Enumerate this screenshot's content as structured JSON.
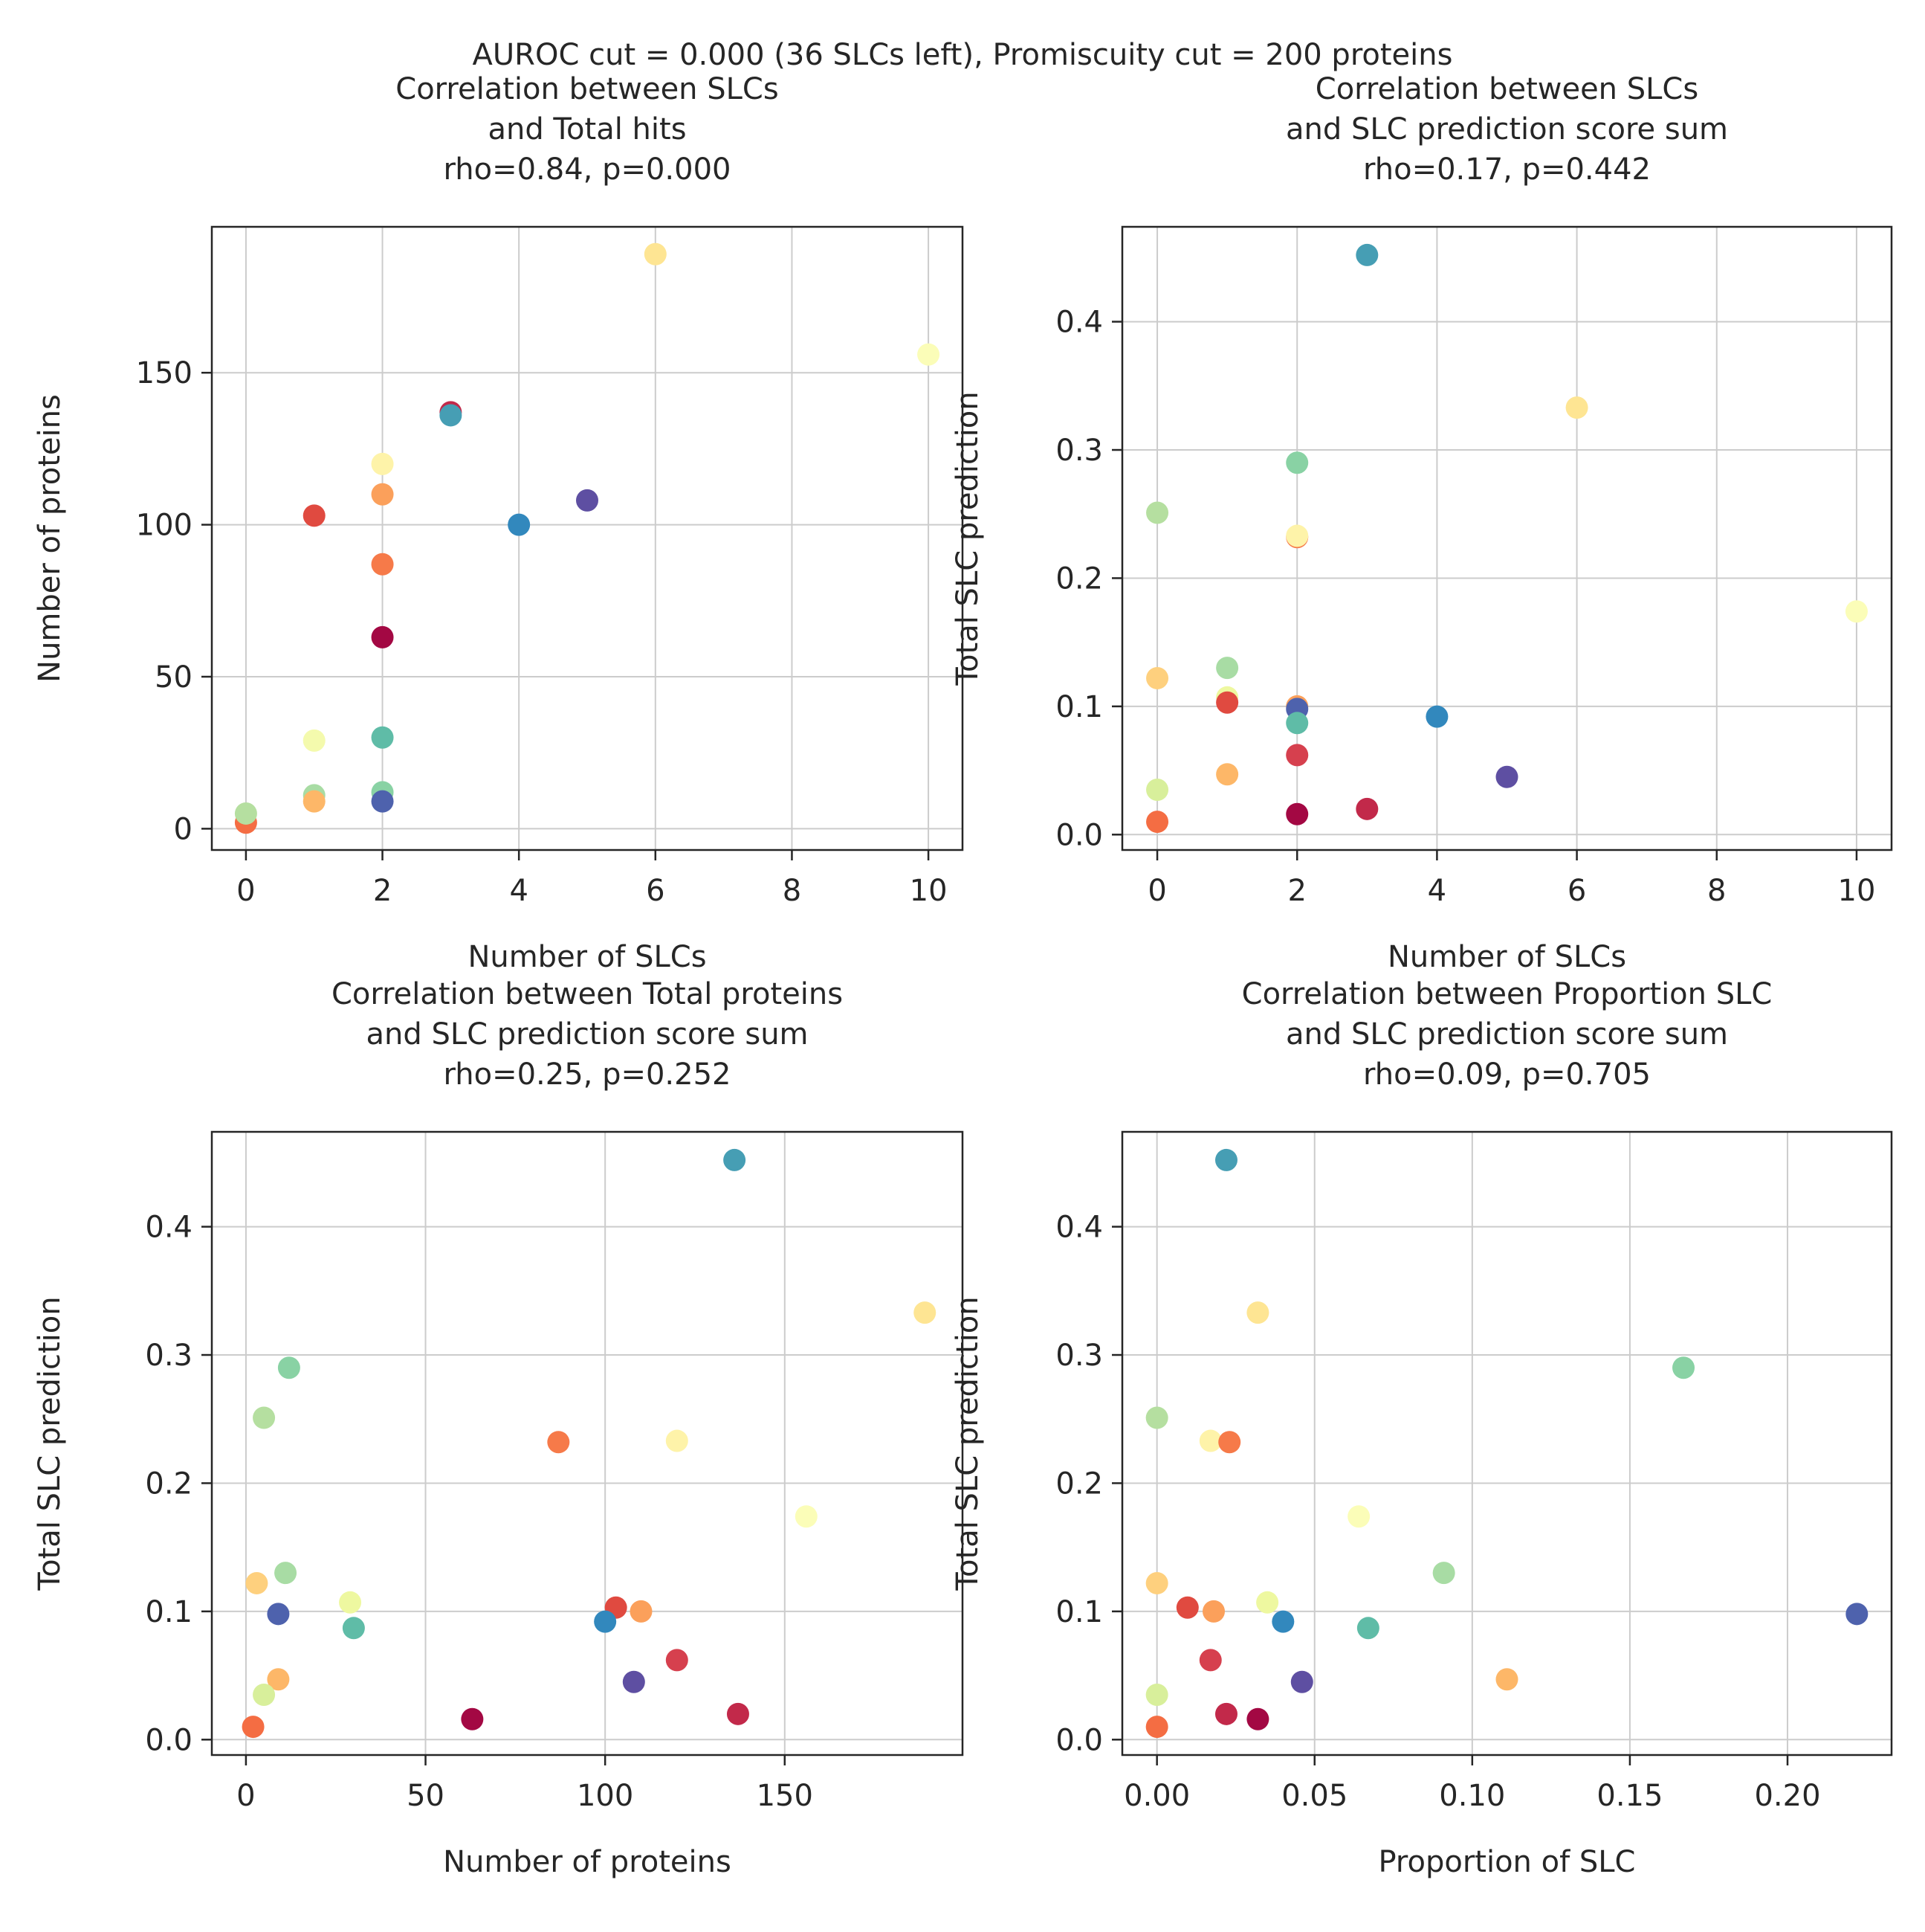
{
  "figure": {
    "suptitle": "AUROC cut = 0.000 (36 SLCs left), Promiscuity cut = 200 proteins"
  },
  "chart_data": [
    {
      "type": "scatter",
      "title_lines": [
        "Correlation between SLCs",
        "and Total hits",
        "rho=0.84, p=0.000"
      ],
      "xlabel": "Number of SLCs",
      "ylabel": "Number of proteins",
      "xlim": [
        -0.5,
        10.5
      ],
      "ylim": [
        -7,
        198
      ],
      "xticks": [
        0,
        2,
        4,
        6,
        8,
        10
      ],
      "xticklabels": [
        "0",
        "2",
        "4",
        "6",
        "8",
        "10"
      ],
      "yticks": [
        0,
        50,
        100,
        150
      ],
      "yticklabels": [
        "0",
        "50",
        "100",
        "150"
      ],
      "grid": true,
      "points": [
        {
          "x": 0,
          "y": 2,
          "color": "#f46d43"
        },
        {
          "x": 0,
          "y": 5,
          "color": "#b5dfa0"
        },
        {
          "x": 1,
          "y": 103,
          "color": "#e04a40"
        },
        {
          "x": 1,
          "y": 29,
          "color": "#f4faad"
        },
        {
          "x": 1,
          "y": 11,
          "color": "#a8dca4"
        },
        {
          "x": 1,
          "y": 9,
          "color": "#fdb768"
        },
        {
          "x": 2,
          "y": 120,
          "color": "#fef3a9"
        },
        {
          "x": 2,
          "y": 110,
          "color": "#fba05b"
        },
        {
          "x": 2,
          "y": 87,
          "color": "#f67a49"
        },
        {
          "x": 2,
          "y": 63,
          "color": "#a30843"
        },
        {
          "x": 2,
          "y": 30,
          "color": "#5fbca7"
        },
        {
          "x": 2,
          "y": 12,
          "color": "#89d2a4"
        },
        {
          "x": 2,
          "y": 9,
          "color": "#4e62ad"
        },
        {
          "x": 3,
          "y": 137,
          "color": "#c2294a"
        },
        {
          "x": 3,
          "y": 136,
          "color": "#469eb4"
        },
        {
          "x": 4,
          "y": 100,
          "color": "#3288bd"
        },
        {
          "x": 5,
          "y": 108,
          "color": "#5e4fa2"
        },
        {
          "x": 6,
          "y": 189,
          "color": "#fee593"
        },
        {
          "x": 10,
          "y": 156,
          "color": "#fbfdb8"
        }
      ]
    },
    {
      "type": "scatter",
      "title_lines": [
        "Correlation between SLCs",
        "and SLC prediction score sum",
        "rho=0.17, p=0.442"
      ],
      "xlabel": "Number of SLCs",
      "ylabel": "Total SLC prediction",
      "xlim": [
        -0.5,
        10.5
      ],
      "ylim": [
        -0.012,
        0.474
      ],
      "xticks": [
        0,
        2,
        4,
        6,
        8,
        10
      ],
      "xticklabels": [
        "0",
        "2",
        "4",
        "6",
        "8",
        "10"
      ],
      "yticks": [
        0.0,
        0.1,
        0.2,
        0.3,
        0.4
      ],
      "yticklabels": [
        "0.0",
        "0.1",
        "0.2",
        "0.3",
        "0.4"
      ],
      "grid": true,
      "points": [
        {
          "x": 0,
          "y": 0.251,
          "color": "#b5dfa0"
        },
        {
          "x": 0,
          "y": 0.122,
          "color": "#fed07e"
        },
        {
          "x": 0,
          "y": 0.035,
          "color": "#d8ef9b"
        },
        {
          "x": 0,
          "y": 0.01,
          "color": "#f46d43"
        },
        {
          "x": 1,
          "y": 0.13,
          "color": "#a8dca4"
        },
        {
          "x": 1,
          "y": 0.107,
          "color": "#eef8a0"
        },
        {
          "x": 1,
          "y": 0.103,
          "color": "#e04a40"
        },
        {
          "x": 1,
          "y": 0.047,
          "color": "#fdb768"
        },
        {
          "x": 2,
          "y": 0.29,
          "color": "#89d2a4"
        },
        {
          "x": 2,
          "y": 0.232,
          "color": "#f67a49"
        },
        {
          "x": 2,
          "y": 0.233,
          "color": "#fef3a9"
        },
        {
          "x": 2,
          "y": 0.1,
          "color": "#fba05b"
        },
        {
          "x": 2,
          "y": 0.098,
          "color": "#4e62ad"
        },
        {
          "x": 2,
          "y": 0.087,
          "color": "#5fbca7"
        },
        {
          "x": 2,
          "y": 0.062,
          "color": "#d6404e"
        },
        {
          "x": 2,
          "y": 0.016,
          "color": "#a30843"
        },
        {
          "x": 3,
          "y": 0.452,
          "color": "#469eb4"
        },
        {
          "x": 3,
          "y": 0.02,
          "color": "#c2294a"
        },
        {
          "x": 4,
          "y": 0.092,
          "color": "#3288bd"
        },
        {
          "x": 5,
          "y": 0.045,
          "color": "#5e4fa2"
        },
        {
          "x": 6,
          "y": 0.333,
          "color": "#fee593"
        },
        {
          "x": 10,
          "y": 0.174,
          "color": "#fbfdb8"
        }
      ]
    },
    {
      "type": "scatter",
      "title_lines": [
        "Correlation between Total proteins",
        "and SLC prediction score sum",
        "rho=0.25, p=0.252"
      ],
      "xlabel": "Number of proteins",
      "ylabel": "Total SLC prediction",
      "xlim": [
        -9.5,
        199.5
      ],
      "ylim": [
        -0.012,
        0.474
      ],
      "xticks": [
        0,
        50,
        100,
        150
      ],
      "xticklabels": [
        "0",
        "50",
        "100",
        "150"
      ],
      "yticks": [
        0.0,
        0.1,
        0.2,
        0.3,
        0.4
      ],
      "yticklabels": [
        "0.0",
        "0.1",
        "0.2",
        "0.3",
        "0.4"
      ],
      "grid": true,
      "points": [
        {
          "x": 136,
          "y": 0.452,
          "color": "#469eb4"
        },
        {
          "x": 189,
          "y": 0.333,
          "color": "#fee593"
        },
        {
          "x": 12,
          "y": 0.29,
          "color": "#89d2a4"
        },
        {
          "x": 5,
          "y": 0.251,
          "color": "#b5dfa0"
        },
        {
          "x": 87,
          "y": 0.232,
          "color": "#f67a49"
        },
        {
          "x": 120,
          "y": 0.233,
          "color": "#fef3a9"
        },
        {
          "x": 156,
          "y": 0.174,
          "color": "#fbfdb8"
        },
        {
          "x": 11,
          "y": 0.13,
          "color": "#a8dca4"
        },
        {
          "x": 3,
          "y": 0.122,
          "color": "#fed07e"
        },
        {
          "x": 29,
          "y": 0.107,
          "color": "#eef8a0"
        },
        {
          "x": 103,
          "y": 0.103,
          "color": "#e04a40"
        },
        {
          "x": 110,
          "y": 0.1,
          "color": "#fba05b"
        },
        {
          "x": 9,
          "y": 0.098,
          "color": "#4e62ad"
        },
        {
          "x": 100,
          "y": 0.092,
          "color": "#3288bd"
        },
        {
          "x": 30,
          "y": 0.087,
          "color": "#5fbca7"
        },
        {
          "x": 120,
          "y": 0.062,
          "color": "#d6404e"
        },
        {
          "x": 9,
          "y": 0.047,
          "color": "#fdb768"
        },
        {
          "x": 108,
          "y": 0.045,
          "color": "#5e4fa2"
        },
        {
          "x": 5,
          "y": 0.035,
          "color": "#d8ef9b"
        },
        {
          "x": 137,
          "y": 0.02,
          "color": "#c2294a"
        },
        {
          "x": 63,
          "y": 0.016,
          "color": "#a30843"
        },
        {
          "x": 2,
          "y": 0.01,
          "color": "#f46d43"
        }
      ]
    },
    {
      "type": "scatter",
      "title_lines": [
        "Correlation between Proportion SLC",
        "and SLC prediction score sum",
        "rho=0.09, p=0.705"
      ],
      "xlabel": "Proportion of SLC",
      "ylabel": "Total SLC prediction",
      "xlim": [
        -0.011,
        0.233
      ],
      "ylim": [
        -0.012,
        0.474
      ],
      "xticks": [
        0.0,
        0.05,
        0.1,
        0.15,
        0.2
      ],
      "xticklabels": [
        "0.00",
        "0.05",
        "0.10",
        "0.15",
        "0.20"
      ],
      "yticks": [
        0.0,
        0.1,
        0.2,
        0.3,
        0.4
      ],
      "yticklabels": [
        "0.0",
        "0.1",
        "0.2",
        "0.3",
        "0.4"
      ],
      "grid": true,
      "points": [
        {
          "x": 0.022,
          "y": 0.452,
          "color": "#469eb4"
        },
        {
          "x": 0.032,
          "y": 0.333,
          "color": "#fee593"
        },
        {
          "x": 0.167,
          "y": 0.29,
          "color": "#89d2a4"
        },
        {
          "x": 0.0,
          "y": 0.251,
          "color": "#b5dfa0"
        },
        {
          "x": 0.017,
          "y": 0.233,
          "color": "#fef3a9"
        },
        {
          "x": 0.023,
          "y": 0.232,
          "color": "#f67a49"
        },
        {
          "x": 0.064,
          "y": 0.174,
          "color": "#fbfdb8"
        },
        {
          "x": 0.091,
          "y": 0.13,
          "color": "#a8dca4"
        },
        {
          "x": 0.0,
          "y": 0.122,
          "color": "#fed07e"
        },
        {
          "x": 0.035,
          "y": 0.107,
          "color": "#eef8a0"
        },
        {
          "x": 0.0097,
          "y": 0.103,
          "color": "#e04a40"
        },
        {
          "x": 0.018,
          "y": 0.1,
          "color": "#fba05b"
        },
        {
          "x": 0.222,
          "y": 0.098,
          "color": "#4e62ad"
        },
        {
          "x": 0.04,
          "y": 0.092,
          "color": "#3288bd"
        },
        {
          "x": 0.067,
          "y": 0.087,
          "color": "#5fbca7"
        },
        {
          "x": 0.017,
          "y": 0.062,
          "color": "#d6404e"
        },
        {
          "x": 0.111,
          "y": 0.047,
          "color": "#fdb768"
        },
        {
          "x": 0.046,
          "y": 0.045,
          "color": "#5e4fa2"
        },
        {
          "x": 0.0,
          "y": 0.035,
          "color": "#d8ef9b"
        },
        {
          "x": 0.022,
          "y": 0.02,
          "color": "#c2294a"
        },
        {
          "x": 0.032,
          "y": 0.016,
          "color": "#a30843"
        },
        {
          "x": 0.0,
          "y": 0.01,
          "color": "#f46d43"
        }
      ]
    }
  ]
}
